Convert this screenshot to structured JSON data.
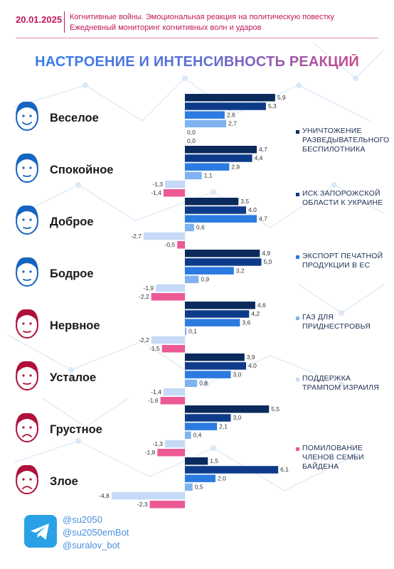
{
  "header": {
    "date": "20.01.2025",
    "line1": "Когнитивные войны. Эмоциональная реакция на политическую повестку",
    "line2": "Ежедневный мониторинг когнитивных волн и ударов"
  },
  "colors": {
    "brand": "#c2185b",
    "title_start": "#2f80ed",
    "title_end": "#e0407a",
    "face_blue": "#1565c0",
    "face_red": "#b0103a"
  },
  "chart_data": {
    "type": "bar",
    "orientation": "horizontal",
    "title": "НАСТРОЕНИЕ И ИНТЕНСИВНОСТЬ РЕАКЦИЙ",
    "xlabel": "",
    "ylabel": "",
    "xlim": [
      -4.8,
      6.1
    ],
    "grid": false,
    "legend_position": "right",
    "categories": [
      "Веселое",
      "Спокойное",
      "Доброе",
      "Бодрое",
      "Нервное",
      "Усталое",
      "Грустное",
      "Злое"
    ],
    "category_icons": [
      "happy-face",
      "calm-face",
      "kind-face",
      "cheerful-face",
      "nervous-face",
      "tired-face",
      "sad-face",
      "angry-face"
    ],
    "category_colors": [
      "#1565c0",
      "#1565c0",
      "#1565c0",
      "#1565c0",
      "#b0103a",
      "#b0103a",
      "#b0103a",
      "#b0103a"
    ],
    "series": [
      {
        "name": "УНИЧТОЖЕНИЕ РАЗВЕДЫВАТЕЛЬНОГО БЕСПИЛОТНИКА",
        "color": "#0b2a5c",
        "values": [
          5.9,
          4.7,
          3.5,
          4.9,
          4.6,
          3.9,
          5.5,
          1.5
        ]
      },
      {
        "name": "ИСК ЗАПОРОЖСКОЙ ОБЛАСТИ К УКРАИНЕ",
        "color": "#0d3b8a",
        "values": [
          5.3,
          4.4,
          4.0,
          5.0,
          4.2,
          4.0,
          3.0,
          6.1
        ]
      },
      {
        "name": "ЭКСПОРТ ПЕЧАТНОЙ ПРОДУКЦИИ В ЕС",
        "color": "#2b7be0",
        "values": [
          2.6,
          2.9,
          4.7,
          3.2,
          3.6,
          3.0,
          2.1,
          2.0
        ]
      },
      {
        "name": "ГАЗ ДЛЯ ПРИДНЕСТРОВЬЯ",
        "color": "#7fb3f0",
        "values": [
          2.7,
          1.1,
          0.6,
          0.9,
          0.1,
          0.8,
          0.4,
          0.5
        ]
      },
      {
        "name": "ПОДДЕРЖКА ТРАМПОМ ИЗРАИЛЯ",
        "color": "#c6d9f7",
        "values": [
          0.0,
          -1.3,
          -2.7,
          -1.9,
          -2.2,
          -1.4,
          -1.3,
          -4.8
        ]
      },
      {
        "name": "ПОМИЛОВАНИЕ ЧЛЕНОВ СЕМЬИ БАЙДЕНА",
        "color": "#ec5a95",
        "values": [
          0.0,
          -1.4,
          -0.5,
          -2.2,
          -1.5,
          -1.6,
          -1.8,
          -2.3
        ]
      }
    ],
    "value_labels": [
      [
        "5,9",
        "5,3",
        "2,6",
        "2,7",
        "0,0",
        "0,0"
      ],
      [
        "4,7",
        "4,4",
        "2,9",
        "1,1",
        "-1,3",
        "-1,4"
      ],
      [
        "3,5",
        "4,0",
        "4,7",
        "0,6",
        "-2,7",
        "-0,5"
      ],
      [
        "4,9",
        "5,0",
        "3,2",
        "0,9",
        "-1,9",
        "-2,2"
      ],
      [
        "4,6",
        "4,2",
        "3,6",
        "0,1",
        "-2,2",
        "-1,5"
      ],
      [
        "3,9",
        "4,0",
        "3,0",
        "0,8",
        "-1,4",
        "-1,6"
      ],
      [
        "5,5",
        "3,0",
        "2,1",
        "0,4",
        "-1,3",
        "-1,8"
      ],
      [
        "1,5",
        "6,1",
        "2,0",
        "0,5",
        "-4,8",
        "-2,3"
      ]
    ]
  },
  "legend": {
    "items": [
      {
        "label": "УНИЧТОЖЕНИЕ РАЗВЕДЫВАТЕЛЬНОГО БЕСПИЛОТНИКА"
      },
      {
        "label": "ИСК ЗАПОРОЖСКОЙ ОБЛАСТИ К УКРАИНЕ"
      },
      {
        "label": "ЭКСПОРТ ПЕЧАТНОЙ ПРОДУКЦИИ В ЕС"
      },
      {
        "label": "ГАЗ ДЛЯ ПРИДНЕСТРОВЬЯ"
      },
      {
        "label": "ПОДДЕРЖКА ТРАМПОМ ИЗРАИЛЯ"
      },
      {
        "label": "ПОМИЛОВАНИЕ ЧЛЕНОВ СЕМЬИ БАЙДЕНА"
      }
    ]
  },
  "footer": {
    "icon": "telegram-icon",
    "handles": [
      "@su2050",
      "@su2050emBot",
      "@suralov_bot"
    ]
  }
}
